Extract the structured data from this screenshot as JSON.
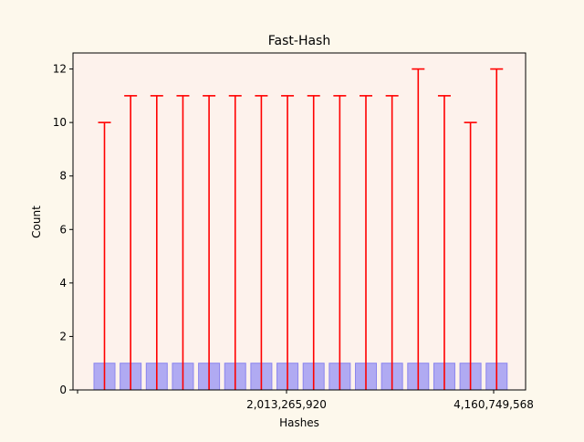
{
  "chart_data": {
    "type": "bar",
    "title": "Fast-Hash",
    "xlabel": "Hashes",
    "ylabel": "Count",
    "ylim": [
      0,
      12.6
    ],
    "y_ticks": [
      0,
      2,
      4,
      6,
      8,
      10,
      12
    ],
    "x_tick_labels": [
      "2,013,265,920",
      "4,160,749,568"
    ],
    "grid": false,
    "values": [
      1,
      1,
      1,
      1,
      1,
      1,
      1,
      1,
      1,
      1,
      1,
      1,
      1,
      1,
      1,
      1
    ],
    "error_upper": [
      10,
      11,
      11,
      11,
      11,
      11,
      11,
      11,
      11,
      11,
      11,
      11,
      12,
      11,
      10,
      12
    ],
    "colors": {
      "figure_bg": "#fdf8ec",
      "axes_bg": "#fdf2ec",
      "bar_fill": "#b0aaf2",
      "bar_edge": "#8b85ee",
      "error": "#ff0000"
    }
  }
}
